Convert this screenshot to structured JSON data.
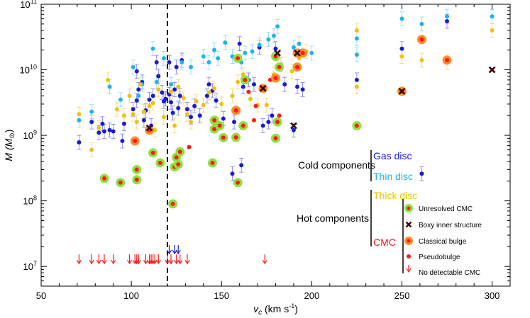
{
  "chart_data": {
    "type": "scatter",
    "title": "",
    "xlabel": "v_c (km s^-1)",
    "ylabel": "M (M_sun)",
    "xlim": [
      50,
      310
    ],
    "ylim": [
      5000000.0,
      100000000000.0
    ],
    "yscale": "log",
    "grid": false,
    "x_ticks": [
      50,
      100,
      150,
      200,
      250,
      300
    ],
    "y_ticks": [
      {
        "value": 10000000.0,
        "base": "10",
        "exp": "7"
      },
      {
        "value": 100000000.0,
        "base": "10",
        "exp": "8"
      },
      {
        "value": 1000000000.0,
        "base": "10",
        "exp": "9"
      },
      {
        "value": 10000000000.0,
        "base": "10",
        "exp": "10"
      },
      {
        "value": 100000000000.0,
        "base": "10",
        "exp": "11"
      }
    ],
    "reference_line": {
      "x": 120,
      "style": "dashed"
    },
    "group_labels": {
      "cold": "Cold components",
      "hot": "Hot components"
    },
    "legend_placement": "bottom-right",
    "colors": {
      "gas": "#1a1ad6",
      "thin": "#1fb2ee",
      "thick": "#f0c20e",
      "cmc": "#ff1a1a",
      "unresolved_ring": "#8ee03c",
      "classical_ring": "#ff8c2a",
      "boxy": "#3a0a0a",
      "error": "#8ad8f5"
    },
    "series": [
      {
        "name": "Gas disc",
        "key": "gas",
        "points": [
          [
            71,
            780000000.0
          ],
          [
            78,
            1600000000.0
          ],
          [
            82,
            1100000000.0
          ],
          [
            84,
            1500000000.0
          ],
          [
            85,
            1150000000.0
          ],
          [
            88,
            1200000000.0
          ],
          [
            90,
            1150000000.0
          ],
          [
            95,
            820000000.0
          ],
          [
            96,
            1500000000.0
          ],
          [
            101,
            2500000000.0
          ],
          [
            103,
            3400000000.0
          ],
          [
            103,
            9500000000.0
          ],
          [
            104,
            5000000000.0
          ],
          [
            106,
            6500000000.0
          ],
          [
            107,
            1700000000.0
          ],
          [
            108,
            2400000000.0
          ],
          [
            110,
            3500000000.0
          ],
          [
            111,
            1400000000.0
          ],
          [
            112,
            4000000000.0
          ],
          [
            114,
            13000000000.0
          ],
          [
            115,
            8000000000.0
          ],
          [
            117,
            4500000000.0
          ],
          [
            118,
            3300000000.0
          ],
          [
            119,
            3600000000.0
          ],
          [
            121,
            4200000000.0
          ],
          [
            121,
            13000000000.0
          ],
          [
            122,
            3200000000.0
          ],
          [
            123,
            2200000000.0
          ],
          [
            124,
            5000000000.0
          ],
          [
            125,
            11000000000.0
          ],
          [
            126,
            2600000000.0
          ],
          [
            127,
            4000000000.0
          ],
          [
            128,
            14000000000.0
          ],
          [
            131,
            2500000000.0
          ],
          [
            133,
            1900000000.0
          ],
          [
            135,
            2800000000.0
          ],
          [
            138,
            2000000000.0
          ],
          [
            142,
            4000000000.0
          ],
          [
            143,
            6000000000.0
          ],
          [
            145,
            4800000000.0
          ],
          [
            147,
            3400000000.0
          ],
          [
            151,
            1800000000.0
          ],
          [
            156,
            260000000.0
          ],
          [
            157,
            1600000000.0
          ],
          [
            160,
            25000000000.0
          ],
          [
            161,
            350000000.0
          ],
          [
            162,
            5500000000.0
          ],
          [
            165,
            7000000000.0
          ],
          [
            168,
            6000000000.0
          ],
          [
            171,
            22000000000.0
          ],
          [
            173,
            1400000000.0
          ],
          [
            176,
            1600000000.0
          ],
          [
            178,
            2000000000.0
          ],
          [
            180,
            21000000000.0
          ],
          [
            183,
            12000000000.0
          ],
          [
            185,
            6000000000.0
          ],
          [
            190,
            1200000000.0
          ],
          [
            192,
            5500000000.0
          ],
          [
            195,
            5000000000.0
          ],
          [
            225,
            7000000000.0
          ],
          [
            250,
            21000000000.0
          ],
          [
            261,
            260000000.0
          ],
          [
            275,
            55000000000.0
          ]
        ]
      },
      {
        "name": "Thin disc",
        "key": "thin",
        "points": [
          [
            71,
            1700000000.0
          ],
          [
            78,
            2300000000.0
          ],
          [
            88,
            5500000000.0
          ],
          [
            94,
            3500000000.0
          ],
          [
            101,
            11000000000.0
          ],
          [
            104,
            4000000000.0
          ],
          [
            106,
            6000000000.0
          ],
          [
            112,
            21000000000.0
          ],
          [
            114,
            6500000000.0
          ],
          [
            118,
            15000000000.0
          ],
          [
            122,
            6000000000.0
          ],
          [
            128,
            13000000000.0
          ],
          [
            133,
            11000000000.0
          ],
          [
            140,
            16000000000.0
          ],
          [
            143,
            13000000000.0
          ],
          [
            146,
            20000000000.0
          ],
          [
            148,
            15000000000.0
          ],
          [
            152,
            26000000000.0
          ],
          [
            156,
            16000000000.0
          ],
          [
            161,
            13000000000.0
          ],
          [
            163,
            18000000000.0
          ],
          [
            167,
            19000000000.0
          ],
          [
            171,
            24000000000.0
          ],
          [
            176,
            29000000000.0
          ],
          [
            179,
            33000000000.0
          ],
          [
            181,
            46000000000.0
          ],
          [
            190,
            22000000000.0
          ],
          [
            193,
            25000000000.0
          ],
          [
            200,
            18000000000.0
          ],
          [
            225,
            30000000000.0
          ],
          [
            225,
            17000000000.0
          ],
          [
            250,
            60000000000.0
          ],
          [
            261,
            50000000000.0
          ],
          [
            275,
            65000000000.0
          ],
          [
            300,
            65000000000.0
          ]
        ]
      },
      {
        "name": "Thick disc",
        "key": "thick",
        "points": [
          [
            71,
            2100000000.0
          ],
          [
            78,
            600000000.0
          ],
          [
            82,
            1300000000.0
          ],
          [
            87,
            7000000000.0
          ],
          [
            92,
            2500000000.0
          ],
          [
            96,
            2000000000.0
          ],
          [
            99,
            4000000000.0
          ],
          [
            101,
            2100000000.0
          ],
          [
            103,
            1600000000.0
          ],
          [
            105,
            6000000000.0
          ],
          [
            107,
            2300000000.0
          ],
          [
            110,
            2800000000.0
          ],
          [
            112,
            3100000000.0
          ],
          [
            113,
            1200000000.0
          ],
          [
            115,
            5000000000.0
          ],
          [
            118,
            1900000000.0
          ],
          [
            122,
            4600000000.0
          ],
          [
            124,
            1400000000.0
          ],
          [
            126,
            5500000000.0
          ],
          [
            129,
            3700000000.0
          ],
          [
            131,
            2100000000.0
          ],
          [
            133,
            1600000000.0
          ],
          [
            136,
            3300000000.0
          ],
          [
            140,
            2900000000.0
          ],
          [
            143,
            4500000000.0
          ],
          [
            146,
            5200000000.0
          ],
          [
            150,
            3000000000.0
          ],
          [
            156,
            4000000000.0
          ],
          [
            159,
            6500000000.0
          ],
          [
            162,
            8500000000.0
          ],
          [
            166,
            3600000000.0
          ],
          [
            170,
            2900000000.0
          ],
          [
            175,
            2900000000.0
          ],
          [
            179,
            8500000000.0
          ],
          [
            183,
            12000000000.0
          ],
          [
            189,
            9500000000.0
          ],
          [
            193,
            15000000000.0
          ],
          [
            197,
            19000000000.0
          ],
          [
            225,
            40000000000.0
          ],
          [
            225,
            5500000000.0
          ],
          [
            250,
            16000000000.0
          ],
          [
            261,
            14000000000.0
          ],
          [
            275,
            13000000000.0
          ],
          [
            300,
            40000000000.0
          ]
        ]
      },
      {
        "name": "CMC",
        "key": "cmc",
        "points": [
          [
            132,
            660000000.0
          ],
          [
            165,
            4600000000.0
          ],
          [
            168,
            1700000000.0
          ],
          [
            169,
            2800000000.0
          ],
          [
            177,
            7000000000.0
          ],
          [
            182,
            2000000000.0
          ]
        ]
      }
    ],
    "cmc_markers": {
      "unresolved": [
        [
          85,
          220000000.0
        ],
        [
          94,
          190000000.0
        ],
        [
          103,
          300000000.0
        ],
        [
          103,
          210000000.0
        ],
        [
          112,
          540000000.0
        ],
        [
          116,
          380000000.0
        ],
        [
          123,
          90000000.0
        ],
        [
          124,
          330000000.0
        ],
        [
          125,
          460000000.0
        ],
        [
          126,
          360000000.0
        ],
        [
          127,
          560000000.0
        ],
        [
          145,
          380000000.0
        ],
        [
          146,
          1250000000.0
        ],
        [
          146,
          1700000000.0
        ],
        [
          149,
          1400000000.0
        ],
        [
          151,
          920000000.0
        ],
        [
          158,
          930000000.0
        ],
        [
          159,
          190000000.0
        ],
        [
          159,
          15000000000.0
        ],
        [
          162,
          1400000000.0
        ],
        [
          163,
          7000000000.0
        ],
        [
          180,
          16000000000.0
        ],
        [
          180,
          900000000.0
        ],
        [
          181,
          1600000000.0
        ],
        [
          182,
          11000000000.0
        ],
        [
          225,
          1400000000.0
        ]
      ],
      "classical": [
        [
          102,
          820000000.0
        ],
        [
          110,
          1200000000.0
        ],
        [
          158,
          2400000000.0
        ],
        [
          173,
          5200000000.0
        ],
        [
          180,
          7500000000.0
        ],
        [
          192,
          11000000000.0
        ],
        [
          192,
          18000000000.0
        ],
        [
          195,
          18000000000.0
        ],
        [
          250,
          4700000000.0
        ],
        [
          261,
          29000000000.0
        ],
        [
          275,
          14000000000.0
        ]
      ],
      "boxy": [
        [
          110,
          1300000000.0
        ],
        [
          173,
          5200000000.0
        ],
        [
          181,
          18000000000.0
        ],
        [
          190,
          1400000000.0
        ],
        [
          192,
          18000000000.0
        ],
        [
          250,
          4700000000.0
        ],
        [
          300,
          10000000000.0
        ]
      ],
      "arrows_red": [
        71,
        78,
        82,
        85,
        90,
        99,
        102,
        103,
        104,
        108,
        110,
        111,
        112,
        113,
        115,
        120,
        122,
        125,
        127,
        131,
        174
      ],
      "arrows_blue": [
        121,
        124,
        126
      ]
    },
    "legend": {
      "components": [
        {
          "label": "Gas disc",
          "key": "gas"
        },
        {
          "label": "Thin disc",
          "key": "thin"
        },
        {
          "label": "Thick disc",
          "key": "thick"
        },
        {
          "label": "CMC",
          "key": "cmc"
        }
      ],
      "markers": [
        {
          "symbol": "unresolved",
          "label": "Unresolved CMC"
        },
        {
          "symbol": "boxy",
          "label": "Boxy inner structure"
        },
        {
          "symbol": "classical",
          "label": "Classical bulge"
        },
        {
          "symbol": "pseudo",
          "label": "Pseudobulge"
        },
        {
          "symbol": "arrow",
          "label": "No detectable CMC"
        }
      ]
    }
  }
}
